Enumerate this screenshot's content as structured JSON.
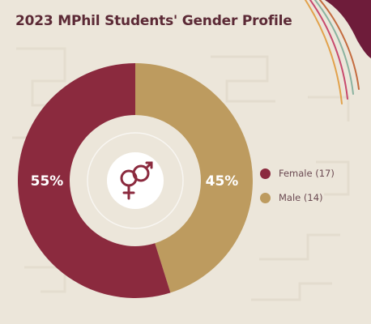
{
  "colors": {
    "female": "#8b2a3e",
    "male": "#bd9b5f",
    "background": "#ece6da",
    "title": "#5c2a36",
    "corner": "#6e1c3a",
    "accent_lines": [
      "#c46b3e",
      "#8bb3a0",
      "#c84a6e",
      "#e2a24c"
    ]
  },
  "chart_data": {
    "type": "donut",
    "title": "2023 MPhil Students' Gender Profile",
    "categories": [
      "Female",
      "Male"
    ],
    "values": [
      17,
      14
    ],
    "percent_labels": [
      "55%",
      "45%"
    ],
    "legend_labels": [
      "Female (17)",
      "Male (14)"
    ],
    "legend_position": "right",
    "center_icon": "gender-symbol-icon"
  }
}
